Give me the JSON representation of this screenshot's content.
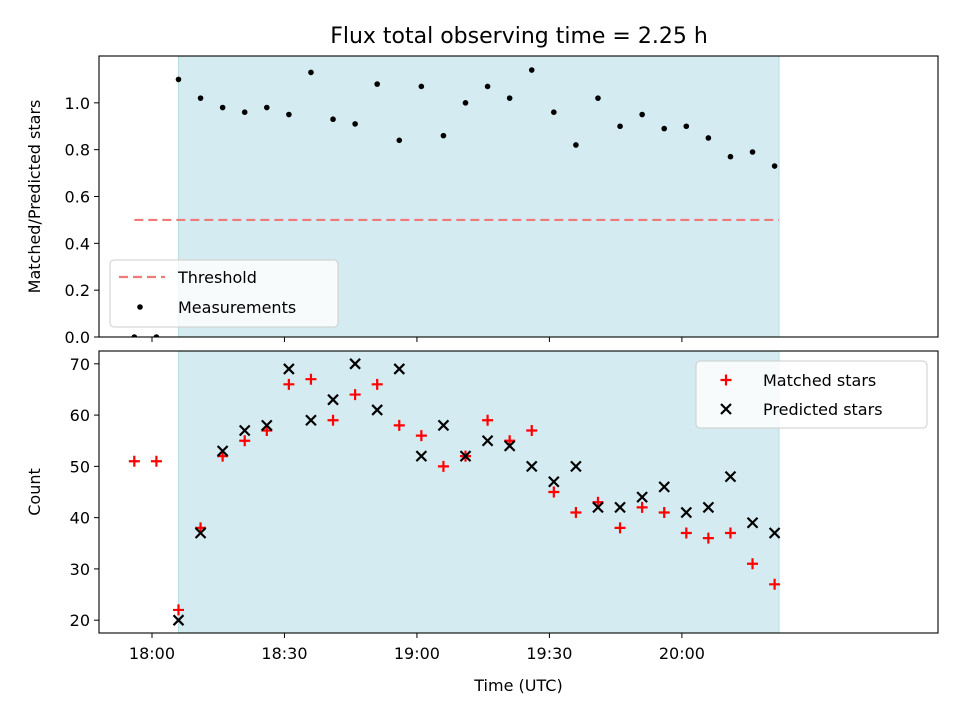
{
  "figure_title": "Flux total observing time = 2.25 h",
  "colors": {
    "shade": "#d4ebf1",
    "threshold": "#f07a7a",
    "measurement": "#000000",
    "matched": "#ff0000",
    "predicted": "#000000"
  },
  "chart_data": [
    {
      "type": "scatter",
      "ylabel": "Matched/Predicted stars",
      "xlabel": "",
      "xlim": [
        "17:48",
        "20:58"
      ],
      "ylim": [
        0,
        1.2
      ],
      "yticks": [
        0.0,
        0.2,
        0.4,
        0.6,
        0.8,
        1.0
      ],
      "ytick_labels": [
        "0.0",
        "0.2",
        "0.4",
        "0.6",
        "0.8",
        "1.0"
      ],
      "xticks": [
        "18:00",
        "18:30",
        "19:00",
        "19:30",
        "20:00"
      ],
      "shaded_span": [
        "18:06",
        "20:22"
      ],
      "legend": {
        "placement": "lower-left",
        "entries": [
          "Threshold",
          "Measurements"
        ]
      },
      "threshold": {
        "name": "Threshold",
        "y": 0.5,
        "x_range": [
          "17:56",
          "20:22"
        ]
      },
      "series": [
        {
          "name": "Measurements",
          "x": [
            "17:56",
            "18:01",
            "18:06",
            "18:11",
            "18:16",
            "18:21",
            "18:26",
            "18:31",
            "18:36",
            "18:41",
            "18:46",
            "18:51",
            "18:56",
            "19:01",
            "19:06",
            "19:11",
            "19:16",
            "19:21",
            "19:26",
            "19:31",
            "19:36",
            "19:41",
            "19:46",
            "19:51",
            "19:56",
            "20:01",
            "20:06",
            "20:11",
            "20:16",
            "20:21"
          ],
          "y": [
            0.0,
            0.0,
            1.1,
            1.02,
            0.98,
            0.96,
            0.98,
            0.95,
            1.13,
            0.93,
            0.91,
            1.08,
            0.84,
            1.07,
            0.86,
            1.0,
            1.07,
            1.02,
            1.14,
            0.96,
            0.82,
            1.02,
            0.9,
            0.95,
            0.89,
            0.9,
            0.85,
            0.77,
            0.79,
            0.73
          ]
        }
      ]
    },
    {
      "type": "scatter",
      "xlabel": "Time (UTC)",
      "ylabel": "Count",
      "xlim": [
        "17:48",
        "20:58"
      ],
      "ylim": [
        17.5,
        72.5
      ],
      "yticks": [
        20,
        30,
        40,
        50,
        60,
        70
      ],
      "ytick_labels": [
        "20",
        "30",
        "40",
        "50",
        "60",
        "70"
      ],
      "xticks": [
        "18:00",
        "18:30",
        "19:00",
        "19:30",
        "20:00"
      ],
      "xtick_labels": [
        "18:00",
        "18:30",
        "19:00",
        "19:30",
        "20:00"
      ],
      "shaded_span": [
        "18:06",
        "20:22"
      ],
      "legend": {
        "placement": "upper-right",
        "entries": [
          "Matched stars",
          "Predicted stars"
        ]
      },
      "series": [
        {
          "name": "Matched stars",
          "marker": "plus",
          "x": [
            "17:56",
            "18:01",
            "18:06",
            "18:11",
            "18:16",
            "18:21",
            "18:26",
            "18:31",
            "18:36",
            "18:41",
            "18:46",
            "18:51",
            "18:56",
            "19:01",
            "19:06",
            "19:11",
            "19:16",
            "19:21",
            "19:26",
            "19:31",
            "19:36",
            "19:41",
            "19:46",
            "19:51",
            "19:56",
            "20:01",
            "20:06",
            "20:11",
            "20:16",
            "20:21"
          ],
          "y": [
            51,
            51,
            22,
            38,
            52,
            55,
            57,
            66,
            67,
            59,
            64,
            66,
            58,
            56,
            50,
            52,
            59,
            55,
            57,
            45,
            41,
            43,
            38,
            42,
            41,
            37,
            36,
            37,
            31,
            27
          ]
        },
        {
          "name": "Predicted stars",
          "marker": "x",
          "x": [
            "18:06",
            "18:11",
            "18:16",
            "18:21",
            "18:26",
            "18:31",
            "18:36",
            "18:41",
            "18:46",
            "18:51",
            "18:56",
            "19:01",
            "19:06",
            "19:11",
            "19:16",
            "19:21",
            "19:26",
            "19:31",
            "19:36",
            "19:41",
            "19:46",
            "19:51",
            "19:56",
            "20:01",
            "20:06",
            "20:11",
            "20:16",
            "20:21"
          ],
          "y": [
            20,
            37,
            53,
            57,
            58,
            69,
            59,
            63,
            70,
            61,
            69,
            52,
            58,
            52,
            55,
            54,
            50,
            47,
            50,
            42,
            42,
            44,
            46,
            41,
            42,
            48,
            39,
            37
          ]
        }
      ]
    }
  ]
}
